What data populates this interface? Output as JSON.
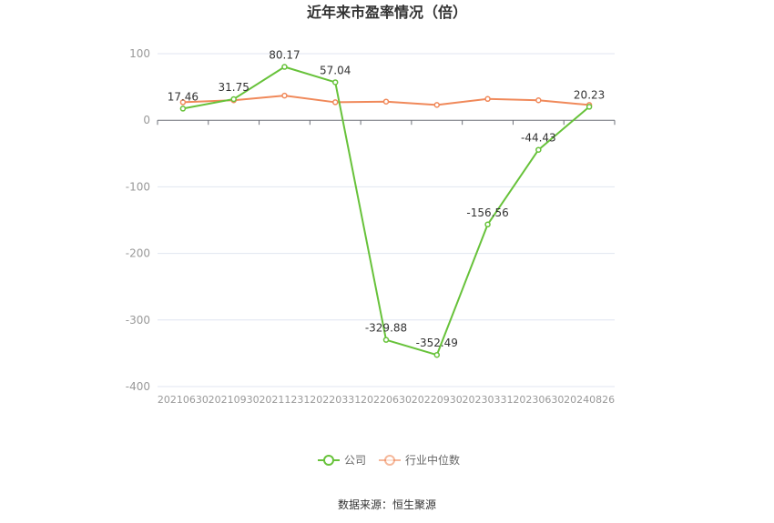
{
  "chart_data": {
    "type": "line",
    "title": "近年来市盈率情况（倍）",
    "categories": [
      "20210630",
      "20210930",
      "20211231",
      "20220331",
      "20220630",
      "20220930",
      "20230331",
      "20230630",
      "20240826"
    ],
    "series": [
      {
        "name": "公司",
        "color": "#67c23a",
        "values": [
          17.46,
          31.75,
          80.17,
          57.04,
          -329.88,
          -352.49,
          -156.56,
          -44.43,
          20.23
        ],
        "labels": [
          "17.46",
          "31.75",
          "80.17",
          "57.04",
          "-329.88",
          "-352.49",
          "-156.56",
          "-44.43",
          "20.23"
        ]
      },
      {
        "name": "行业中位数",
        "color": "#f0895a",
        "values": [
          27,
          30,
          37,
          27,
          28,
          23,
          32,
          30,
          23
        ]
      }
    ],
    "ylim": [
      -400,
      100
    ],
    "yticks": [
      100,
      0,
      -100,
      -200,
      -300,
      -400
    ],
    "grid": true,
    "legend": "bottom-center"
  },
  "source_text": "数据来源：恒生聚源"
}
